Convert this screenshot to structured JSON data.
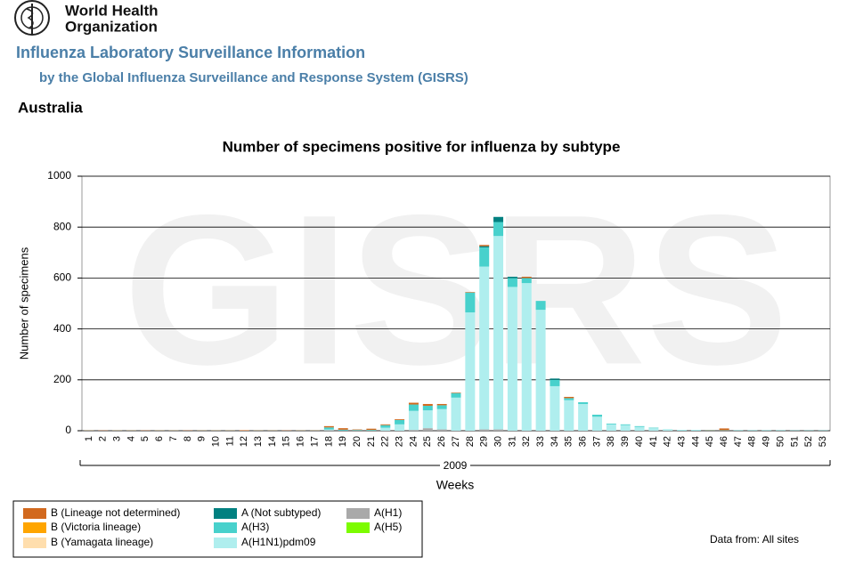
{
  "header": {
    "org_line1": "World Health",
    "org_line2": "Organization",
    "title": "Influenza Laboratory Surveillance Information",
    "subtitle": "by the Global Influenza Surveillance and Response System (GISRS)",
    "country": "Australia"
  },
  "chart_data": {
    "type": "bar",
    "stacked": true,
    "title": "Number of specimens positive for influenza by subtype",
    "watermark": "GISRS",
    "ylabel": "Number of specimens",
    "xlabel": "Weeks",
    "year": "2009",
    "source": "Data from: All sites",
    "categories": [
      "1",
      "2",
      "3",
      "4",
      "5",
      "6",
      "7",
      "8",
      "9",
      "10",
      "11",
      "12",
      "13",
      "14",
      "15",
      "16",
      "17",
      "18",
      "19",
      "20",
      "21",
      "22",
      "23",
      "24",
      "25",
      "26",
      "27",
      "28",
      "29",
      "30",
      "31",
      "32",
      "33",
      "34",
      "35",
      "36",
      "37",
      "38",
      "39",
      "40",
      "41",
      "42",
      "43",
      "44",
      "45",
      "46",
      "47",
      "48",
      "49",
      "50",
      "51",
      "52",
      "53"
    ],
    "ylim": [
      0,
      1000
    ],
    "yticks": [
      0,
      200,
      400,
      600,
      800,
      1000
    ],
    "grid": true,
    "series": [
      {
        "name": "B (Lineage not determined)",
        "color": "#d2691e",
        "values": [
          1,
          1,
          1,
          1,
          1,
          1,
          1,
          1,
          1,
          1,
          1,
          2,
          1,
          1,
          1,
          1,
          1,
          5,
          6,
          2,
          5,
          3,
          3,
          7,
          7,
          5,
          2,
          2,
          5,
          0,
          0,
          5,
          0,
          0,
          5,
          0,
          0,
          0,
          0,
          0,
          0,
          0,
          0,
          0,
          1,
          7,
          0,
          0,
          0,
          0,
          0,
          0,
          0
        ]
      },
      {
        "name": "B (Victoria lineage)",
        "color": "#ffa500",
        "values": [
          0,
          0,
          0,
          0,
          0,
          0,
          0,
          0,
          0,
          0,
          0,
          0,
          0,
          0,
          0,
          0,
          0,
          0,
          0,
          0,
          0,
          0,
          0,
          0,
          0,
          0,
          0,
          0,
          0,
          0,
          0,
          0,
          0,
          0,
          0,
          0,
          0,
          0,
          0,
          0,
          0,
          0,
          0,
          0,
          0,
          0,
          0,
          0,
          0,
          0,
          0,
          0,
          0
        ]
      },
      {
        "name": "B (Yamagata lineage)",
        "color": "#ffdead",
        "values": [
          0,
          0,
          0,
          0,
          0,
          0,
          0,
          0,
          0,
          0,
          0,
          0,
          0,
          0,
          0,
          0,
          0,
          0,
          0,
          0,
          0,
          0,
          0,
          0,
          0,
          0,
          0,
          0,
          0,
          0,
          0,
          0,
          0,
          0,
          0,
          0,
          0,
          0,
          0,
          0,
          0,
          0,
          0,
          0,
          0,
          0,
          0,
          0,
          0,
          0,
          0,
          0,
          0
        ]
      },
      {
        "name": "A (Not subtyped)",
        "color": "#008080",
        "values": [
          0,
          0,
          0,
          0,
          0,
          0,
          0,
          0,
          0,
          0,
          0,
          0,
          0,
          0,
          0,
          0,
          0,
          0,
          0,
          0,
          0,
          0,
          0,
          0,
          0,
          0,
          0,
          0,
          5,
          20,
          5,
          0,
          0,
          5,
          0,
          0,
          0,
          0,
          0,
          0,
          0,
          0,
          0,
          0,
          0,
          0,
          0,
          0,
          0,
          0,
          0,
          0,
          0
        ]
      },
      {
        "name": "A(H3)",
        "color": "#48d1cc",
        "values": [
          1,
          0,
          1,
          1,
          0,
          1,
          1,
          0,
          1,
          1,
          1,
          0,
          1,
          1,
          0,
          1,
          1,
          8,
          3,
          2,
          3,
          10,
          17,
          25,
          18,
          15,
          18,
          78,
          75,
          55,
          35,
          20,
          35,
          25,
          8,
          7,
          8,
          3,
          3,
          3,
          2,
          1,
          1,
          1,
          1,
          1,
          1,
          1,
          1,
          1,
          1,
          1,
          1
        ]
      },
      {
        "name": "A(H1N1)pdm09",
        "color": "#afeeee",
        "values": [
          0,
          0,
          0,
          0,
          0,
          0,
          0,
          0,
          0,
          0,
          0,
          0,
          0,
          0,
          0,
          0,
          0,
          3,
          1,
          1,
          0,
          12,
          25,
          75,
          70,
          80,
          130,
          465,
          640,
          760,
          565,
          580,
          475,
          175,
          120,
          105,
          55,
          25,
          22,
          15,
          10,
          4,
          2,
          2,
          1,
          1,
          1,
          1,
          1,
          1,
          0,
          0,
          0
        ]
      },
      {
        "name": "A(H1)",
        "color": "#a9a9a9",
        "values": [
          0,
          0,
          0,
          0,
          0,
          0,
          0,
          0,
          0,
          0,
          0,
          0,
          0,
          0,
          0,
          0,
          0,
          2,
          0,
          0,
          0,
          0,
          0,
          3,
          10,
          5,
          0,
          0,
          5,
          5,
          0,
          0,
          0,
          0,
          0,
          0,
          0,
          0,
          0,
          0,
          0,
          0,
          0,
          0,
          0,
          0,
          0,
          0,
          0,
          0,
          0,
          0,
          0
        ]
      },
      {
        "name": "A(H5)",
        "color": "#7cfc00",
        "values": [
          0,
          0,
          0,
          0,
          0,
          0,
          0,
          0,
          0,
          0,
          0,
          0,
          0,
          0,
          0,
          0,
          0,
          0,
          0,
          0,
          0,
          0,
          0,
          0,
          0,
          0,
          0,
          0,
          0,
          0,
          0,
          0,
          0,
          0,
          0,
          0,
          0,
          0,
          0,
          0,
          0,
          0,
          0,
          0,
          0,
          0,
          0,
          0,
          0,
          0,
          0,
          0,
          0
        ]
      }
    ]
  }
}
